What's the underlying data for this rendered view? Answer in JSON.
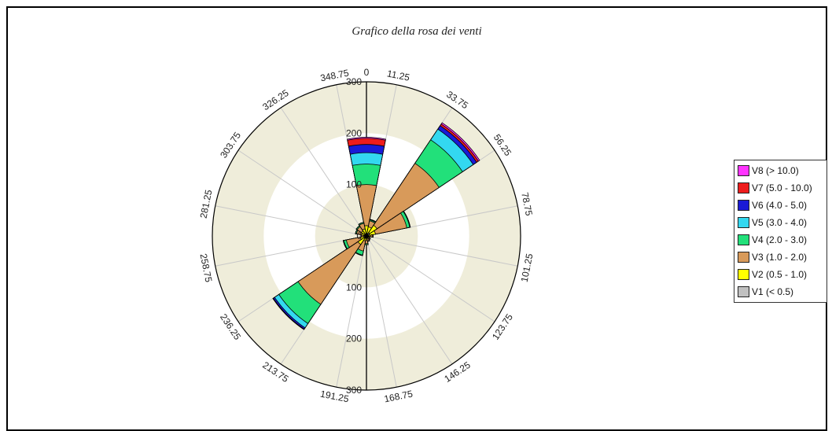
{
  "title": "Grafico della rosa dei venti",
  "chart_data": {
    "type": "windrose",
    "title": "Grafico della rosa dei venti",
    "radial_max": 300,
    "radial_ticks": [
      "0",
      "100",
      "200",
      "300"
    ],
    "direction_labels": [
      "0",
      "11.25",
      "33.75",
      "56.25",
      "78.75",
      "101.25",
      "123.75",
      "146.25",
      "168.75",
      "191.25",
      "213.75",
      "236.25",
      "258.75",
      "281.25",
      "303.75",
      "326.25",
      "348.75"
    ],
    "bin_width_deg": 22.5,
    "speed_classes": [
      {
        "name": "V1 (< 0.5)",
        "color": "#c0c0c0"
      },
      {
        "name": "V2 (0.5 - 1.0)",
        "color": "#ffff00"
      },
      {
        "name": "V3 (1.0 - 2.0)",
        "color": "#d89a5a"
      },
      {
        "name": "V4 (2.0 - 3.0)",
        "color": "#22e07a"
      },
      {
        "name": "V5 (3.0 - 4.0)",
        "color": "#33d8f0"
      },
      {
        "name": "V6 (4.0 - 5.0)",
        "color": "#1a1ad6"
      },
      {
        "name": "V7 (5.0 - 10.0)",
        "color": "#ee1c1c"
      },
      {
        "name": "V8 (> 10.0)",
        "color": "#ff33ff"
      }
    ],
    "directions": [
      0,
      22.5,
      45,
      67.5,
      90,
      112.5,
      135,
      157.5,
      180,
      202.5,
      225,
      247.5,
      270,
      292.5,
      315,
      337.5
    ],
    "cumulative": [
      [
        5,
        20,
        100,
        140,
        162,
        178,
        190,
        192
      ],
      [
        5,
        18,
        30,
        32,
        33,
        33,
        33,
        33
      ],
      [
        8,
        25,
        170,
        225,
        250,
        258,
        262,
        265
      ],
      [
        6,
        18,
        80,
        86,
        87,
        87,
        87,
        87
      ],
      [
        3,
        8,
        12,
        13,
        13,
        13,
        13,
        13
      ],
      [
        2,
        4,
        6,
        7,
        7,
        7,
        7,
        7
      ],
      [
        2,
        4,
        8,
        9,
        9,
        9,
        9,
        9
      ],
      [
        2,
        5,
        10,
        11,
        11,
        11,
        11,
        11
      ],
      [
        3,
        8,
        15,
        17,
        17,
        17,
        17,
        17
      ],
      [
        3,
        10,
        30,
        38,
        39,
        39,
        39,
        39
      ],
      [
        6,
        20,
        160,
        205,
        215,
        218,
        219,
        219
      ],
      [
        4,
        12,
        40,
        45,
        46,
        46,
        46,
        46
      ],
      [
        3,
        6,
        10,
        11,
        11,
        11,
        11,
        11
      ],
      [
        3,
        10,
        20,
        22,
        22,
        22,
        22,
        22
      ],
      [
        3,
        12,
        22,
        24,
        24,
        24,
        24,
        24
      ],
      [
        4,
        14,
        25,
        27,
        27,
        27,
        27,
        27
      ]
    ],
    "legend_position": "right"
  },
  "colors": {
    "band_light": "#efedda",
    "band_white": "#ffffff",
    "spoke": "#c8c8c8",
    "axis": "#000000"
  }
}
